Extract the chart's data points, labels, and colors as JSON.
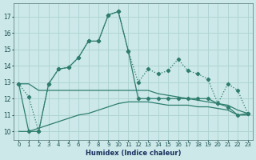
{
  "xlabel": "Humidex (Indice chaleur)",
  "x": [
    0,
    1,
    2,
    3,
    4,
    5,
    6,
    7,
    8,
    9,
    10,
    11,
    12,
    13,
    14,
    15,
    16,
    17,
    18,
    19,
    20,
    21,
    22,
    23
  ],
  "line1_dotted": [
    12.9,
    12.1,
    10.0,
    12.9,
    13.8,
    13.9,
    14.5,
    15.5,
    15.5,
    17.1,
    17.3,
    14.9,
    13.0,
    13.8,
    13.5,
    13.7,
    14.4,
    13.7,
    13.5,
    13.2,
    11.7,
    12.9,
    12.5,
    11.1
  ],
  "line2_solid": [
    12.9,
    10.0,
    10.0,
    12.9,
    13.8,
    13.9,
    14.5,
    15.5,
    15.5,
    17.1,
    17.3,
    14.9,
    12.0,
    12.0,
    12.0,
    12.0,
    12.0,
    12.0,
    12.0,
    12.0,
    11.7,
    11.5,
    11.0,
    11.1
  ],
  "line3_bottom": [
    10.0,
    10.0,
    10.2,
    10.4,
    10.6,
    10.8,
    11.0,
    11.1,
    11.3,
    11.5,
    11.7,
    11.8,
    11.8,
    11.8,
    11.7,
    11.6,
    11.6,
    11.6,
    11.5,
    11.5,
    11.4,
    11.3,
    11.0,
    11.0
  ],
  "line4_mid": [
    12.9,
    12.9,
    12.5,
    12.5,
    12.5,
    12.5,
    12.5,
    12.5,
    12.5,
    12.5,
    12.5,
    12.5,
    12.5,
    12.5,
    12.3,
    12.2,
    12.1,
    12.0,
    11.9,
    11.8,
    11.7,
    11.6,
    11.3,
    11.1
  ],
  "line_color": "#2e7d6e",
  "bg_color": "#cce8e8",
  "grid_color": "#afd4d4",
  "ylim": [
    9.5,
    17.8
  ],
  "yticks": [
    10,
    11,
    12,
    13,
    14,
    15,
    16,
    17
  ]
}
